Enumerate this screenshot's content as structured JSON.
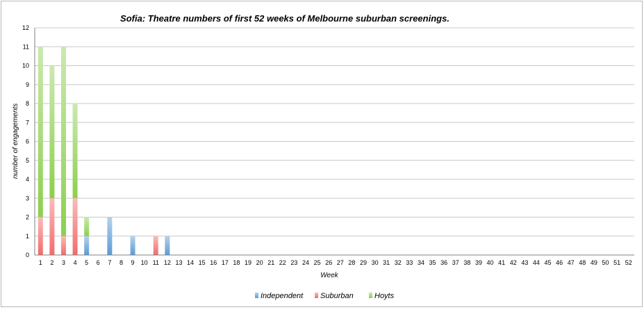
{
  "chart_data": {
    "type": "bar",
    "stacked": true,
    "title": "Sofia: Theatre numbers of first 52 weeks of Melbourne suburban screenings.",
    "xlabel": "Week",
    "ylabel": "number of engagements",
    "ylim": [
      0,
      12
    ],
    "y_ticks": [
      0,
      1,
      2,
      3,
      4,
      5,
      6,
      7,
      8,
      9,
      10,
      11,
      12
    ],
    "grid": true,
    "legend_position": "bottom",
    "categories": [
      1,
      2,
      3,
      4,
      5,
      6,
      7,
      8,
      9,
      10,
      11,
      12,
      13,
      14,
      15,
      16,
      17,
      18,
      19,
      20,
      21,
      22,
      23,
      24,
      25,
      26,
      27,
      28,
      29,
      30,
      31,
      32,
      33,
      34,
      35,
      36,
      37,
      38,
      39,
      40,
      41,
      42,
      43,
      44,
      45,
      46,
      47,
      48,
      49,
      50,
      51,
      52
    ],
    "series": [
      {
        "name": "Independent",
        "color": "#5b9bd5",
        "values": [
          0,
          0,
          0,
          0,
          1,
          0,
          2,
          0,
          1,
          0,
          0,
          1,
          0,
          0,
          0,
          0,
          0,
          0,
          0,
          0,
          0,
          0,
          0,
          0,
          0,
          0,
          0,
          0,
          0,
          0,
          0,
          0,
          0,
          0,
          0,
          0,
          0,
          0,
          0,
          0,
          0,
          0,
          0,
          0,
          0,
          0,
          0,
          0,
          0,
          0,
          0,
          0
        ]
      },
      {
        "name": "Suburban",
        "color": "#f26b6b",
        "values": [
          2,
          3,
          1,
          3,
          0,
          0,
          0,
          0,
          0,
          0,
          1,
          0,
          0,
          0,
          0,
          0,
          0,
          0,
          0,
          0,
          0,
          0,
          0,
          0,
          0,
          0,
          0,
          0,
          0,
          0,
          0,
          0,
          0,
          0,
          0,
          0,
          0,
          0,
          0,
          0,
          0,
          0,
          0,
          0,
          0,
          0,
          0,
          0,
          0,
          0,
          0,
          0
        ]
      },
      {
        "name": "Hoyts",
        "color": "#8ccf4d",
        "values": [
          9,
          7,
          10,
          5,
          1,
          0,
          0,
          0,
          0,
          0,
          0,
          0,
          0,
          0,
          0,
          0,
          0,
          0,
          0,
          0,
          0,
          0,
          0,
          0,
          0,
          0,
          0,
          0,
          0,
          0,
          0,
          0,
          0,
          0,
          0,
          0,
          0,
          0,
          0,
          0,
          0,
          0,
          0,
          0,
          0,
          0,
          0,
          0,
          0,
          0,
          0,
          0
        ]
      }
    ]
  }
}
